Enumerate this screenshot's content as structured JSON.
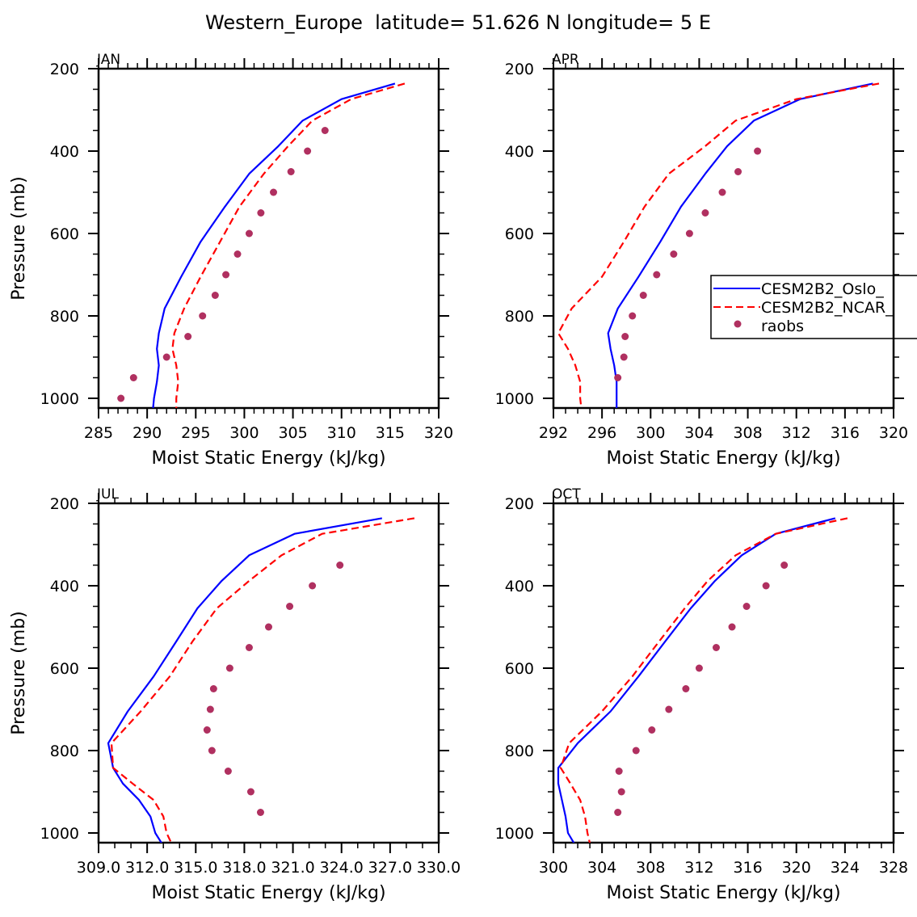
{
  "title": "Western_Europe  latitude= 51.626 N longitude= 5 E",
  "legend": {
    "entries": [
      {
        "label": "CESM2B2_Oslo_",
        "style": "solid",
        "color": "#0000ff"
      },
      {
        "label": "CESM2B2_NCAR_",
        "style": "dashed",
        "color": "#ff0000"
      },
      {
        "label": "raobs",
        "style": "marker",
        "color": "#b03060"
      }
    ],
    "placement": "in APR panel, right edge, clipped"
  },
  "colors": {
    "oslo": "#0000ff",
    "ncar": "#ff0000",
    "raobs": "#b03060",
    "axes": "#000000"
  },
  "chart_data": [
    {
      "type": "line",
      "panel_label": "JAN",
      "title": "JAN",
      "xlabel": "Moist Static Energy (kJ/kg)",
      "ylabel": "Pressure (mb)",
      "xlim": [
        285,
        320
      ],
      "xticks": [
        285,
        290,
        295,
        300,
        305,
        310,
        315,
        320
      ],
      "xtick_labels": [
        "285",
        "290",
        "295",
        "300",
        "305",
        "310",
        "315",
        "320"
      ],
      "x_minor_per_major": 4,
      "ylim": [
        1025,
        200
      ],
      "yticks": [
        200,
        400,
        600,
        800,
        1000
      ],
      "ytick_labels": [
        "200",
        "400",
        "600",
        "800",
        "1000"
      ],
      "show_ylabel": true,
      "grid": false,
      "series": [
        {
          "name": "CESM2B2_Oslo_",
          "style": "solid",
          "p": [
            236,
            274,
            326,
            388,
            455,
            535,
            620,
            705,
            782,
            842,
            880,
            920,
            960,
            1000,
            1025
          ],
          "x": [
            315.5,
            310.0,
            306.0,
            303.5,
            300.5,
            298.0,
            295.5,
            293.5,
            291.8,
            291.2,
            291.0,
            291.2,
            291.0,
            290.7,
            290.6
          ]
        },
        {
          "name": "CESM2B2_NCAR_",
          "style": "dashed",
          "p": [
            236,
            274,
            326,
            388,
            455,
            535,
            620,
            705,
            782,
            842,
            880,
            920,
            960,
            1000,
            1025
          ],
          "x": [
            316.5,
            311.0,
            307.0,
            304.5,
            302.0,
            299.5,
            297.5,
            295.5,
            293.8,
            292.8,
            292.6,
            293.0,
            293.2,
            293.0,
            293.0
          ]
        },
        {
          "name": "raobs",
          "style": "marker",
          "p": [
            350,
            400,
            450,
            500,
            550,
            600,
            650,
            700,
            750,
            800,
            850,
            900,
            950,
            1000
          ],
          "x": [
            308.3,
            306.5,
            304.8,
            303.0,
            301.7,
            300.5,
            299.3,
            298.1,
            297.0,
            295.7,
            294.2,
            292.0,
            288.6,
            287.3
          ]
        }
      ]
    },
    {
      "type": "line",
      "panel_label": "APR",
      "title": "APR",
      "xlabel": "Moist Static Energy (kJ/kg)",
      "ylabel": "",
      "xlim": [
        292,
        320
      ],
      "xticks": [
        292,
        296,
        300,
        304,
        308,
        312,
        316,
        320
      ],
      "xtick_labels": [
        "292",
        "296",
        "300",
        "304",
        "308",
        "312",
        "316",
        "320"
      ],
      "x_minor_per_major": 3,
      "ylim": [
        1025,
        200
      ],
      "yticks": [
        200,
        400,
        600,
        800,
        1000
      ],
      "ytick_labels": [
        "200",
        "400",
        "600",
        "800",
        "1000"
      ],
      "show_ylabel": false,
      "grid": false,
      "has_legend": true,
      "series": [
        {
          "name": "CESM2B2_Oslo_",
          "style": "solid",
          "p": [
            236,
            274,
            326,
            388,
            455,
            535,
            620,
            705,
            782,
            842,
            880,
            920,
            960,
            1000,
            1025
          ],
          "x": [
            318.3,
            312.3,
            308.5,
            306.3,
            304.5,
            302.5,
            300.8,
            299.0,
            297.3,
            296.5,
            296.7,
            297.0,
            297.2,
            297.2,
            297.2
          ]
        },
        {
          "name": "CESM2B2_NCAR_",
          "style": "dashed",
          "p": [
            236,
            274,
            326,
            388,
            455,
            535,
            620,
            705,
            782,
            842,
            880,
            920,
            960,
            1000,
            1025
          ],
          "x": [
            318.8,
            312.0,
            307.0,
            304.5,
            301.5,
            299.5,
            297.8,
            296.0,
            293.5,
            292.4,
            293.2,
            293.8,
            294.2,
            294.2,
            294.3
          ]
        },
        {
          "name": "raobs",
          "style": "marker",
          "p": [
            400,
            450,
            500,
            550,
            600,
            650,
            700,
            750,
            800,
            850,
            900,
            950
          ],
          "x": [
            308.8,
            307.2,
            305.9,
            304.5,
            303.2,
            301.9,
            300.5,
            299.4,
            298.5,
            297.9,
            297.8,
            297.3
          ]
        }
      ]
    },
    {
      "type": "line",
      "panel_label": "JUL",
      "title": "JUL",
      "xlabel": "Moist Static Energy (kJ/kg)",
      "ylabel": "Pressure (mb)",
      "xlim": [
        309.0,
        330.0
      ],
      "xticks": [
        309.0,
        312.0,
        315.0,
        318.0,
        321.0,
        324.0,
        327.0,
        330.0
      ],
      "xtick_labels": [
        "309.0",
        "312.0",
        "315.0",
        "318.0",
        "321.0",
        "324.0",
        "327.0",
        "330.0"
      ],
      "x_minor_per_major": 2,
      "ylim": [
        1025,
        200
      ],
      "yticks": [
        200,
        400,
        600,
        800,
        1000
      ],
      "ytick_labels": [
        "200",
        "400",
        "600",
        "800",
        "1000"
      ],
      "show_ylabel": true,
      "grid": false,
      "series": [
        {
          "name": "CESM2B2_Oslo_",
          "style": "solid",
          "p": [
            236,
            274,
            326,
            388,
            455,
            535,
            620,
            705,
            782,
            842,
            880,
            920,
            960,
            1000,
            1025
          ],
          "x": [
            326.5,
            321.1,
            318.3,
            316.6,
            315.1,
            313.8,
            312.4,
            310.8,
            309.6,
            309.9,
            310.5,
            311.5,
            312.2,
            312.5,
            312.9
          ]
        },
        {
          "name": "CESM2B2_NCAR_",
          "style": "dashed",
          "p": [
            236,
            274,
            326,
            388,
            455,
            535,
            620,
            705,
            782,
            842,
            880,
            920,
            960,
            1000,
            1025
          ],
          "x": [
            328.5,
            322.8,
            320.3,
            318.3,
            316.3,
            314.8,
            313.4,
            311.6,
            309.8,
            309.9,
            311.1,
            312.4,
            313.0,
            313.2,
            313.5
          ]
        },
        {
          "name": "raobs",
          "style": "marker",
          "p": [
            350,
            400,
            450,
            500,
            550,
            600,
            650,
            700,
            750,
            800,
            850,
            900,
            950
          ],
          "x": [
            323.9,
            322.2,
            320.8,
            319.5,
            318.3,
            317.1,
            316.1,
            315.9,
            315.7,
            316.0,
            317.0,
            318.4,
            319.0
          ]
        }
      ]
    },
    {
      "type": "line",
      "panel_label": "OCT",
      "title": "OCT",
      "xlabel": "Moist Static Energy (kJ/kg)",
      "ylabel": "",
      "xlim": [
        300,
        328
      ],
      "xticks": [
        300,
        304,
        308,
        312,
        316,
        320,
        324,
        328
      ],
      "xtick_labels": [
        "300",
        "304",
        "308",
        "312",
        "316",
        "320",
        "324",
        "328"
      ],
      "x_minor_per_major": 3,
      "ylim": [
        1025,
        200
      ],
      "yticks": [
        200,
        400,
        600,
        800,
        1000
      ],
      "ytick_labels": [
        "200",
        "400",
        "600",
        "800",
        "1000"
      ],
      "show_ylabel": false,
      "grid": false,
      "series": [
        {
          "name": "CESM2B2_Oslo_",
          "style": "solid",
          "p": [
            236,
            274,
            326,
            388,
            455,
            535,
            620,
            705,
            782,
            842,
            880,
            920,
            960,
            1000,
            1025
          ],
          "x": [
            323.2,
            318.3,
            315.5,
            313.3,
            311.3,
            309.2,
            307.0,
            304.7,
            302.0,
            300.4,
            300.4,
            300.7,
            301.0,
            301.2,
            301.7
          ]
        },
        {
          "name": "CESM2B2_NCAR_",
          "style": "dashed",
          "p": [
            236,
            274,
            326,
            388,
            455,
            535,
            620,
            705,
            782,
            842,
            880,
            920,
            960,
            1000,
            1025
          ],
          "x": [
            324.2,
            318.3,
            315.0,
            312.7,
            310.8,
            308.7,
            306.5,
            304.0,
            301.3,
            300.6,
            301.4,
            302.2,
            302.6,
            302.8,
            303.0
          ]
        },
        {
          "name": "raobs",
          "style": "marker",
          "p": [
            350,
            400,
            450,
            500,
            550,
            600,
            650,
            700,
            750,
            800,
            850,
            900,
            950
          ],
          "x": [
            319.0,
            317.5,
            315.9,
            314.7,
            313.4,
            312.0,
            310.9,
            309.5,
            308.1,
            306.8,
            305.4,
            305.6,
            305.3
          ]
        }
      ]
    }
  ]
}
